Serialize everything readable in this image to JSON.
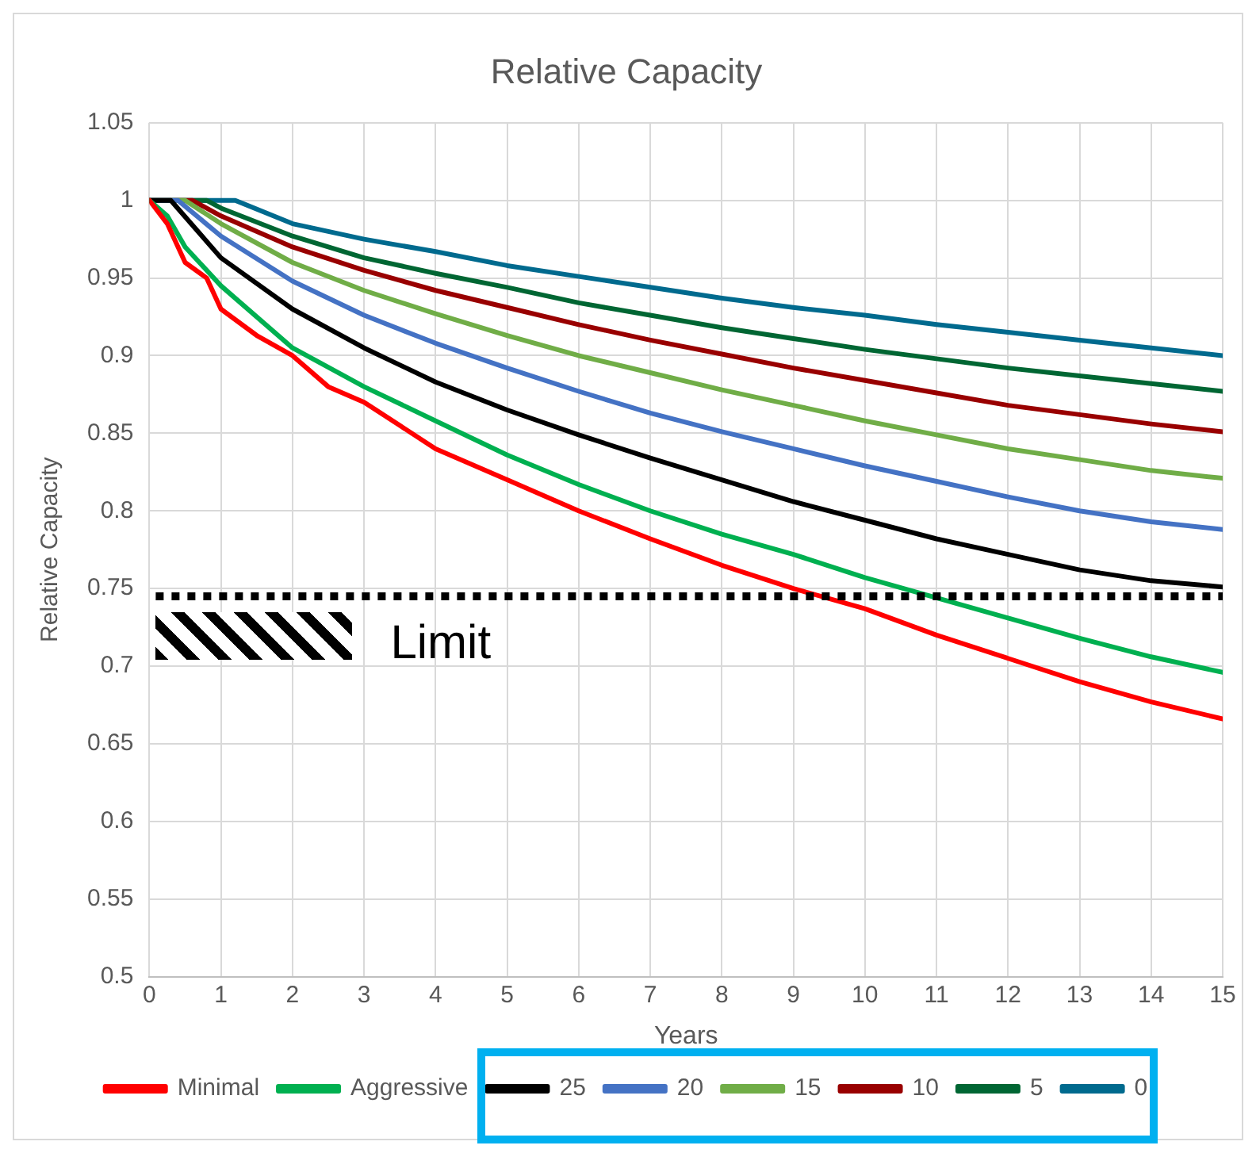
{
  "chart_data": {
    "type": "line",
    "title": "Relative Capacity",
    "xlabel": "Years",
    "ylabel": "Relative Capacity",
    "xlim": [
      0,
      15
    ],
    "xticks": [
      0,
      1,
      2,
      3,
      4,
      5,
      6,
      7,
      8,
      9,
      10,
      11,
      12,
      13,
      14,
      15
    ],
    "ylim": [
      0.5,
      1.05
    ],
    "yticks": [
      0.5,
      0.55,
      0.6,
      0.65,
      0.7,
      0.75,
      0.8,
      0.85,
      0.9,
      0.95,
      1,
      1.05
    ],
    "grid": true,
    "legend": "bottom",
    "marker": "none",
    "line_style": "solid",
    "ref_lines": [
      {
        "axis": "y",
        "value": 0.745,
        "label": "Limit",
        "color": "#000000",
        "line_style": "dotted"
      }
    ],
    "series": [
      {
        "name": "Minimal",
        "color": "#ff0000",
        "x": [
          0,
          0.25,
          0.5,
          0.8,
          1,
          1.5,
          2,
          2.5,
          3,
          3.5,
          4,
          5,
          6,
          7,
          8,
          9,
          10,
          11,
          12,
          13,
          14,
          15
        ],
        "values": [
          1,
          0.985,
          0.96,
          0.95,
          0.93,
          0.913,
          0.9,
          0.88,
          0.87,
          0.855,
          0.84,
          0.82,
          0.8,
          0.782,
          0.765,
          0.75,
          0.737,
          0.72,
          0.705,
          0.69,
          0.677,
          0.666
        ]
      },
      {
        "name": "Aggressive",
        "color": "#00b050",
        "x": [
          0,
          0.25,
          0.5,
          1,
          2,
          3,
          4,
          5,
          6,
          7,
          8,
          9,
          10,
          11,
          12,
          13,
          14,
          15
        ],
        "values": [
          1,
          0.99,
          0.97,
          0.945,
          0.905,
          0.88,
          0.858,
          0.836,
          0.817,
          0.8,
          0.785,
          0.772,
          0.757,
          0.744,
          0.731,
          0.718,
          0.706,
          0.696
        ]
      },
      {
        "name": "25",
        "color": "#000000",
        "x": [
          0,
          0.3,
          1,
          2,
          3,
          4,
          5,
          6,
          7,
          8,
          9,
          10,
          11,
          12,
          13,
          14,
          15
        ],
        "values": [
          1,
          1,
          0.963,
          0.93,
          0.905,
          0.883,
          0.865,
          0.849,
          0.834,
          0.82,
          0.806,
          0.794,
          0.782,
          0.772,
          0.762,
          0.755,
          0.751
        ]
      },
      {
        "name": "20",
        "color": "#4472c4",
        "x": [
          0,
          0.4,
          1,
          2,
          3,
          4,
          5,
          6,
          7,
          8,
          9,
          10,
          11,
          12,
          13,
          14,
          15
        ],
        "values": [
          1,
          1,
          0.977,
          0.948,
          0.926,
          0.908,
          0.892,
          0.877,
          0.863,
          0.851,
          0.84,
          0.829,
          0.819,
          0.809,
          0.8,
          0.793,
          0.788
        ]
      },
      {
        "name": "15",
        "color": "#70ad47",
        "x": [
          0,
          0.5,
          1,
          2,
          3,
          4,
          5,
          6,
          7,
          8,
          9,
          10,
          11,
          12,
          13,
          14,
          15
        ],
        "values": [
          1,
          1,
          0.985,
          0.96,
          0.942,
          0.927,
          0.913,
          0.9,
          0.889,
          0.878,
          0.868,
          0.858,
          0.849,
          0.84,
          0.833,
          0.826,
          0.821
        ]
      },
      {
        "name": "10",
        "color": "#990000",
        "x": [
          0,
          0.6,
          1,
          2,
          3,
          4,
          5,
          6,
          7,
          8,
          9,
          10,
          11,
          12,
          13,
          14,
          15
        ],
        "values": [
          1,
          1,
          0.99,
          0.97,
          0.955,
          0.942,
          0.931,
          0.92,
          0.91,
          0.901,
          0.892,
          0.884,
          0.876,
          0.868,
          0.862,
          0.856,
          0.851
        ]
      },
      {
        "name": "5",
        "color": "#006633",
        "x": [
          0,
          0.8,
          1,
          2,
          3,
          4,
          5,
          6,
          7,
          8,
          9,
          10,
          11,
          12,
          13,
          14,
          15
        ],
        "values": [
          1,
          1,
          0.995,
          0.977,
          0.963,
          0.953,
          0.944,
          0.934,
          0.926,
          0.918,
          0.911,
          0.904,
          0.898,
          0.892,
          0.887,
          0.882,
          0.877
        ]
      },
      {
        "name": "0",
        "color": "#006a8e",
        "x": [
          0,
          1.2,
          2,
          3,
          4,
          5,
          6,
          7,
          8,
          9,
          10,
          11,
          12,
          13,
          14,
          15
        ],
        "values": [
          1,
          1,
          0.985,
          0.975,
          0.967,
          0.958,
          0.951,
          0.944,
          0.937,
          0.931,
          0.926,
          0.92,
          0.915,
          0.91,
          0.905,
          0.9
        ]
      }
    ]
  }
}
